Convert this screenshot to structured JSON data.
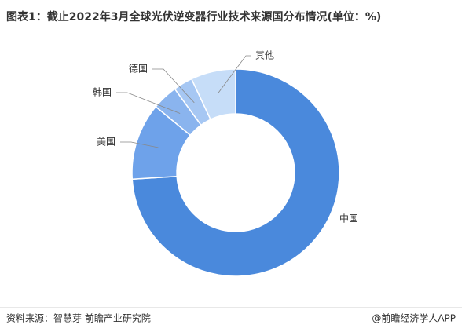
{
  "chart_data": {
    "type": "donut",
    "title": "图表1：截止2022年3月全球光伏逆变器行业技术来源国分布情况(单位：%)",
    "categories": [
      "中国",
      "美国",
      "韩国",
      "德国",
      "其他"
    ],
    "values": [
      74,
      12,
      4,
      3,
      7
    ],
    "colors": [
      "#4a89dc",
      "#6ea2ea",
      "#8ab4ee",
      "#a6c7f3",
      "#c6ddf8"
    ],
    "source": "资料来源：智慧芽 前瞻产业研究院",
    "credit": "@前瞻经济学人APP"
  }
}
